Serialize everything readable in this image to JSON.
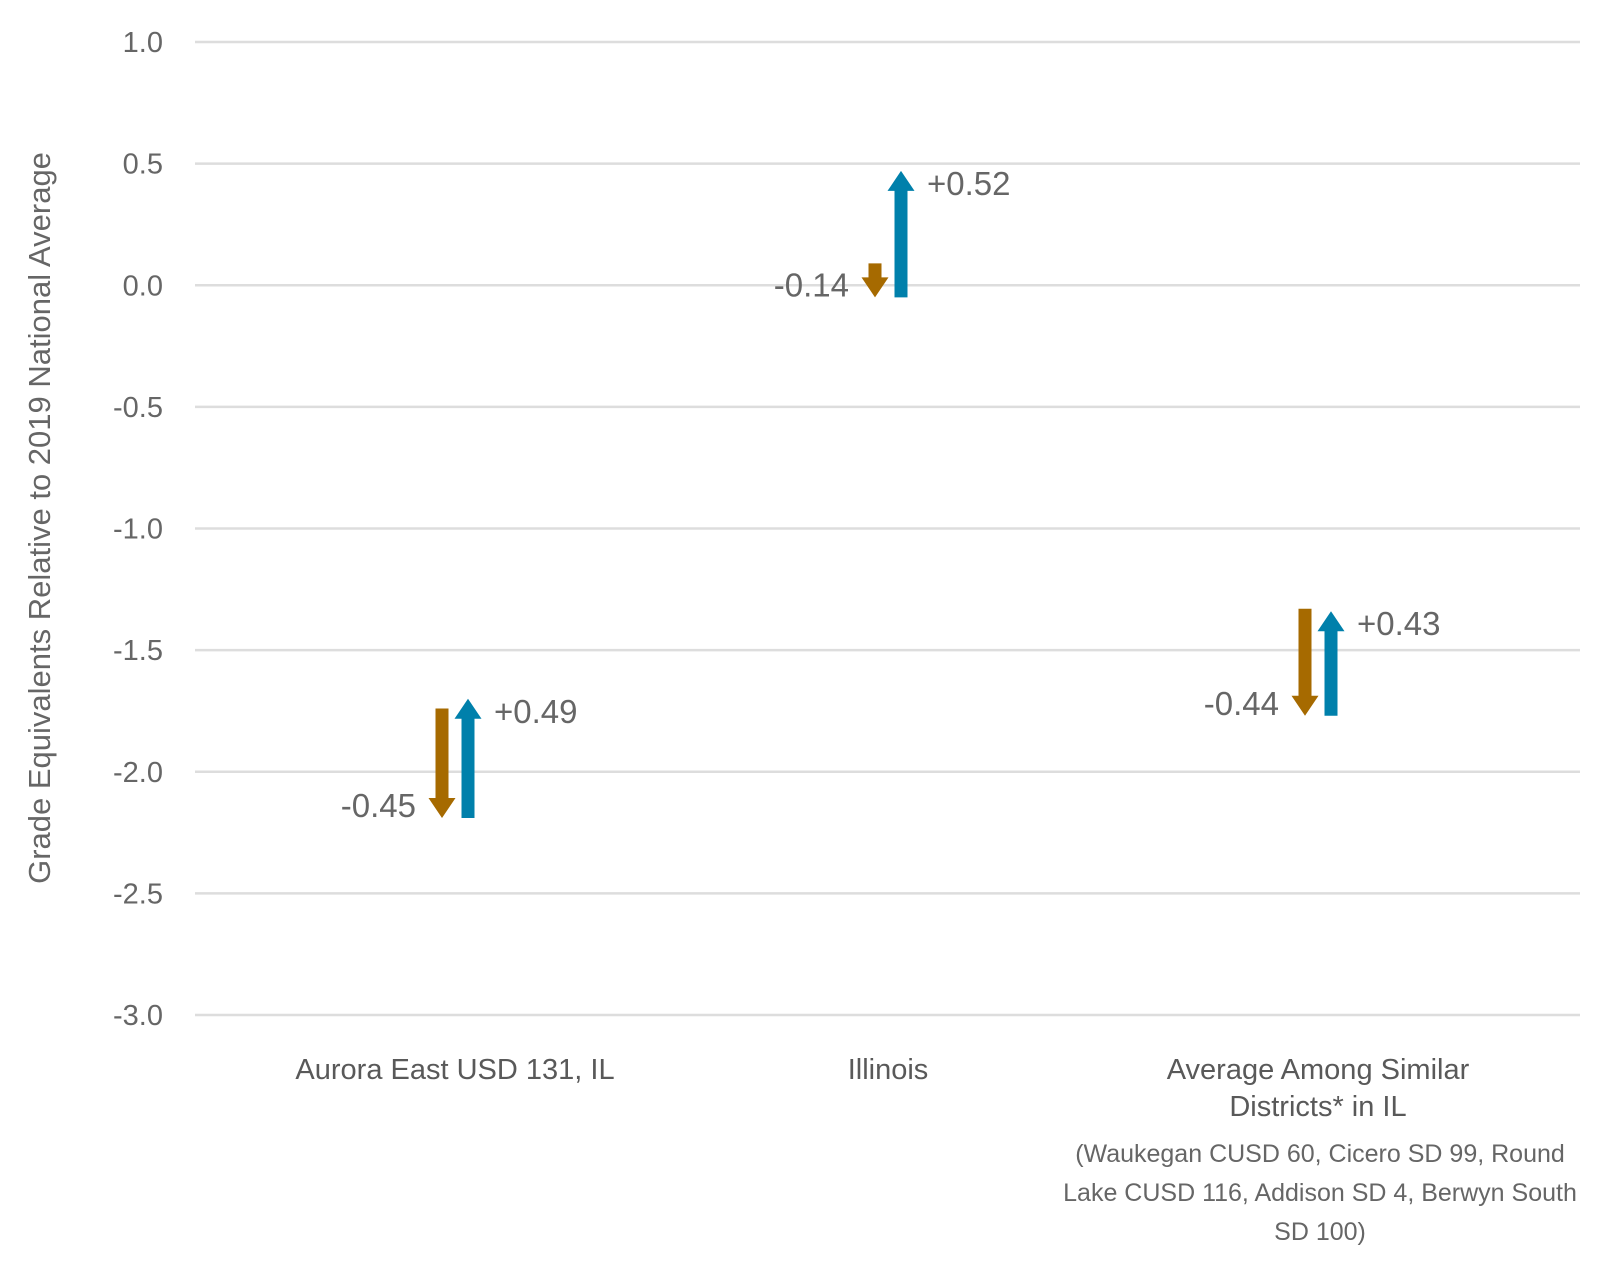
{
  "chart_data": {
    "type": "arrow",
    "ylabel": "Grade Equivalents Relative to 2019 National Average",
    "ylim": [
      -3.0,
      1.0
    ],
    "yticks": [
      "1.0",
      "0.5",
      "0.0",
      "-0.5",
      "-1.0",
      "-1.5",
      "-2.0",
      "-2.5",
      "-3.0"
    ],
    "ytick_values": [
      1.0,
      0.5,
      0.0,
      -0.5,
      -1.0,
      -1.5,
      -2.0,
      -2.5,
      -3.0
    ],
    "grid": true,
    "colors": {
      "decline": "#A66A00",
      "recovery": "#0080AB",
      "grid": "#DDDDDD"
    },
    "categories": [
      {
        "label_lines": [
          "Aurora East USD 131, IL"
        ],
        "decline": {
          "from": -1.74,
          "to": -2.19,
          "label": "-0.45"
        },
        "recovery": {
          "from": -2.19,
          "to": -1.7,
          "label": "+0.49"
        }
      },
      {
        "label_lines": [
          "Illinois"
        ],
        "decline": {
          "from": 0.09,
          "to": -0.05,
          "label": "-0.14"
        },
        "recovery": {
          "from": -0.05,
          "to": 0.47,
          "label": "+0.52"
        }
      },
      {
        "label_lines": [
          "Average Among Similar",
          "Districts* in IL"
        ],
        "decline": {
          "from": -1.33,
          "to": -1.77,
          "label": "-0.44"
        },
        "recovery": {
          "from": -1.77,
          "to": -1.34,
          "label": "+0.43"
        }
      }
    ]
  },
  "footnote": {
    "lines": [
      "(Waukegan CUSD 60, Cicero SD 99, Round",
      "Lake CUSD 116, Addison SD 4, Berwyn South",
      "SD 100)"
    ]
  }
}
